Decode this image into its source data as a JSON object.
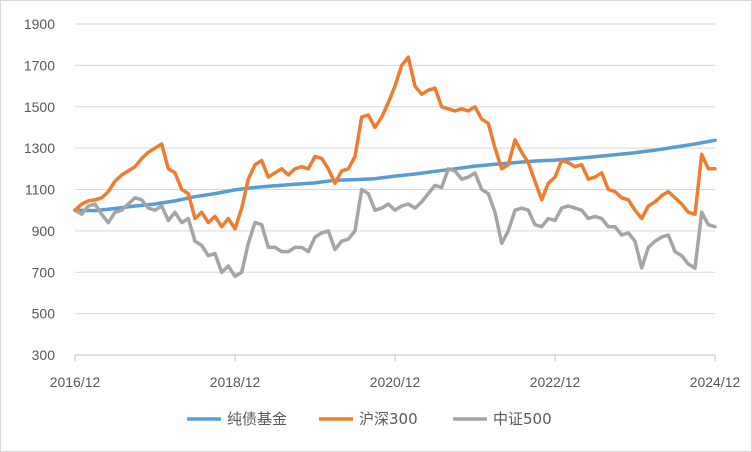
{
  "chart_data": {
    "type": "line",
    "title": "",
    "xlabel": "",
    "ylabel": "",
    "x_range": [
      "2016-12",
      "2024-12"
    ],
    "x_ticks": [
      "2016/12",
      "2018/12",
      "2020/12",
      "2022/12",
      "2024/12"
    ],
    "ylim": [
      300,
      1900
    ],
    "y_ticks": [
      300,
      500,
      700,
      900,
      1100,
      1300,
      1500,
      1700,
      1900
    ],
    "grid": "horizontal",
    "legend_position": "bottom",
    "series": [
      {
        "name": "纯债基金",
        "color": "#5B9BD5",
        "points": [
          [
            "2016-12",
            1000
          ],
          [
            "2017-03",
            998
          ],
          [
            "2017-06",
            1008
          ],
          [
            "2017-09",
            1020
          ],
          [
            "2017-12",
            1030
          ],
          [
            "2018-03",
            1045
          ],
          [
            "2018-06",
            1065
          ],
          [
            "2018-09",
            1080
          ],
          [
            "2018-12",
            1098
          ],
          [
            "2019-03",
            1110
          ],
          [
            "2019-06",
            1118
          ],
          [
            "2019-09",
            1125
          ],
          [
            "2019-12",
            1132
          ],
          [
            "2020-03",
            1145
          ],
          [
            "2020-06",
            1148
          ],
          [
            "2020-09",
            1152
          ],
          [
            "2020-12",
            1165
          ],
          [
            "2021-03",
            1175
          ],
          [
            "2021-06",
            1188
          ],
          [
            "2021-09",
            1200
          ],
          [
            "2021-12",
            1213
          ],
          [
            "2022-03",
            1222
          ],
          [
            "2022-06",
            1230
          ],
          [
            "2022-09",
            1238
          ],
          [
            "2022-12",
            1242
          ],
          [
            "2023-03",
            1250
          ],
          [
            "2023-06",
            1258
          ],
          [
            "2023-09",
            1268
          ],
          [
            "2023-12",
            1278
          ],
          [
            "2024-03",
            1290
          ],
          [
            "2024-06",
            1305
          ],
          [
            "2024-09",
            1320
          ],
          [
            "2024-12",
            1338
          ]
        ]
      },
      {
        "name": "沪深300",
        "color": "#ED7D31",
        "points": [
          [
            "2016-12",
            1000
          ],
          [
            "2017-01",
            1030
          ],
          [
            "2017-02",
            1045
          ],
          [
            "2017-03",
            1050
          ],
          [
            "2017-04",
            1060
          ],
          [
            "2017-05",
            1090
          ],
          [
            "2017-06",
            1140
          ],
          [
            "2017-07",
            1170
          ],
          [
            "2017-08",
            1190
          ],
          [
            "2017-09",
            1210
          ],
          [
            "2017-10",
            1250
          ],
          [
            "2017-11",
            1280
          ],
          [
            "2017-12",
            1300
          ],
          [
            "2018-01",
            1320
          ],
          [
            "2018-02",
            1200
          ],
          [
            "2018-03",
            1180
          ],
          [
            "2018-04",
            1100
          ],
          [
            "2018-05",
            1080
          ],
          [
            "2018-06",
            960
          ],
          [
            "2018-07",
            990
          ],
          [
            "2018-08",
            940
          ],
          [
            "2018-09",
            970
          ],
          [
            "2018-10",
            920
          ],
          [
            "2018-11",
            960
          ],
          [
            "2018-12",
            910
          ],
          [
            "2019-01",
            1010
          ],
          [
            "2019-02",
            1150
          ],
          [
            "2019-03",
            1220
          ],
          [
            "2019-04",
            1240
          ],
          [
            "2019-05",
            1160
          ],
          [
            "2019-06",
            1180
          ],
          [
            "2019-07",
            1200
          ],
          [
            "2019-08",
            1170
          ],
          [
            "2019-09",
            1200
          ],
          [
            "2019-10",
            1210
          ],
          [
            "2019-11",
            1200
          ],
          [
            "2019-12",
            1260
          ],
          [
            "2020-01",
            1250
          ],
          [
            "2020-02",
            1200
          ],
          [
            "2020-03",
            1130
          ],
          [
            "2020-04",
            1190
          ],
          [
            "2020-05",
            1200
          ],
          [
            "2020-06",
            1260
          ],
          [
            "2020-07",
            1450
          ],
          [
            "2020-08",
            1460
          ],
          [
            "2020-09",
            1400
          ],
          [
            "2020-10",
            1450
          ],
          [
            "2020-11",
            1520
          ],
          [
            "2020-12",
            1600
          ],
          [
            "2021-01",
            1700
          ],
          [
            "2021-02",
            1740
          ],
          [
            "2021-03",
            1600
          ],
          [
            "2021-04",
            1560
          ],
          [
            "2021-05",
            1580
          ],
          [
            "2021-06",
            1590
          ],
          [
            "2021-07",
            1500
          ],
          [
            "2021-08",
            1490
          ],
          [
            "2021-09",
            1480
          ],
          [
            "2021-10",
            1490
          ],
          [
            "2021-11",
            1480
          ],
          [
            "2021-12",
            1500
          ],
          [
            "2022-01",
            1440
          ],
          [
            "2022-02",
            1420
          ],
          [
            "2022-03",
            1300
          ],
          [
            "2022-04",
            1200
          ],
          [
            "2022-05",
            1220
          ],
          [
            "2022-06",
            1340
          ],
          [
            "2022-07",
            1280
          ],
          [
            "2022-08",
            1230
          ],
          [
            "2022-09",
            1140
          ],
          [
            "2022-10",
            1050
          ],
          [
            "2022-11",
            1130
          ],
          [
            "2022-12",
            1160
          ],
          [
            "2023-01",
            1240
          ],
          [
            "2023-02",
            1230
          ],
          [
            "2023-03",
            1210
          ],
          [
            "2023-04",
            1220
          ],
          [
            "2023-05",
            1150
          ],
          [
            "2023-06",
            1160
          ],
          [
            "2023-07",
            1180
          ],
          [
            "2023-08",
            1100
          ],
          [
            "2023-09",
            1090
          ],
          [
            "2023-10",
            1060
          ],
          [
            "2023-11",
            1050
          ],
          [
            "2023-12",
            1000
          ],
          [
            "2024-01",
            960
          ],
          [
            "2024-02",
            1020
          ],
          [
            "2024-03",
            1040
          ],
          [
            "2024-04",
            1070
          ],
          [
            "2024-05",
            1090
          ],
          [
            "2024-06",
            1060
          ],
          [
            "2024-07",
            1030
          ],
          [
            "2024-08",
            990
          ],
          [
            "2024-09",
            980
          ],
          [
            "2024-10",
            1270
          ],
          [
            "2024-11",
            1200
          ],
          [
            "2024-12",
            1200
          ]
        ]
      },
      {
        "name": "中证500",
        "color": "#A5A5A5",
        "points": [
          [
            "2016-12",
            1000
          ],
          [
            "2017-01",
            980
          ],
          [
            "2017-02",
            1020
          ],
          [
            "2017-03",
            1030
          ],
          [
            "2017-04",
            980
          ],
          [
            "2017-05",
            940
          ],
          [
            "2017-06",
            990
          ],
          [
            "2017-07",
            1000
          ],
          [
            "2017-08",
            1030
          ],
          [
            "2017-09",
            1060
          ],
          [
            "2017-10",
            1050
          ],
          [
            "2017-11",
            1010
          ],
          [
            "2017-12",
            1000
          ],
          [
            "2018-01",
            1020
          ],
          [
            "2018-02",
            950
          ],
          [
            "2018-03",
            990
          ],
          [
            "2018-04",
            940
          ],
          [
            "2018-05",
            960
          ],
          [
            "2018-06",
            850
          ],
          [
            "2018-07",
            830
          ],
          [
            "2018-08",
            780
          ],
          [
            "2018-09",
            790
          ],
          [
            "2018-10",
            700
          ],
          [
            "2018-11",
            730
          ],
          [
            "2018-12",
            680
          ],
          [
            "2019-01",
            700
          ],
          [
            "2019-02",
            840
          ],
          [
            "2019-03",
            940
          ],
          [
            "2019-04",
            930
          ],
          [
            "2019-05",
            820
          ],
          [
            "2019-06",
            820
          ],
          [
            "2019-07",
            800
          ],
          [
            "2019-08",
            800
          ],
          [
            "2019-09",
            820
          ],
          [
            "2019-10",
            820
          ],
          [
            "2019-11",
            800
          ],
          [
            "2019-12",
            870
          ],
          [
            "2020-01",
            890
          ],
          [
            "2020-02",
            900
          ],
          [
            "2020-03",
            810
          ],
          [
            "2020-04",
            850
          ],
          [
            "2020-05",
            860
          ],
          [
            "2020-06",
            900
          ],
          [
            "2020-07",
            1100
          ],
          [
            "2020-08",
            1080
          ],
          [
            "2020-09",
            1000
          ],
          [
            "2020-10",
            1010
          ],
          [
            "2020-11",
            1030
          ],
          [
            "2020-12",
            1000
          ],
          [
            "2021-01",
            1020
          ],
          [
            "2021-02",
            1030
          ],
          [
            "2021-03",
            1010
          ],
          [
            "2021-04",
            1040
          ],
          [
            "2021-05",
            1080
          ],
          [
            "2021-06",
            1120
          ],
          [
            "2021-07",
            1110
          ],
          [
            "2021-08",
            1200
          ],
          [
            "2021-09",
            1190
          ],
          [
            "2021-10",
            1150
          ],
          [
            "2021-11",
            1160
          ],
          [
            "2021-12",
            1180
          ],
          [
            "2022-01",
            1100
          ],
          [
            "2022-02",
            1080
          ],
          [
            "2022-03",
            990
          ],
          [
            "2022-04",
            840
          ],
          [
            "2022-05",
            900
          ],
          [
            "2022-06",
            1000
          ],
          [
            "2022-07",
            1010
          ],
          [
            "2022-08",
            1000
          ],
          [
            "2022-09",
            930
          ],
          [
            "2022-10",
            920
          ],
          [
            "2022-11",
            960
          ],
          [
            "2022-12",
            950
          ],
          [
            "2023-01",
            1010
          ],
          [
            "2023-02",
            1020
          ],
          [
            "2023-03",
            1010
          ],
          [
            "2023-04",
            1000
          ],
          [
            "2023-05",
            960
          ],
          [
            "2023-06",
            970
          ],
          [
            "2023-07",
            960
          ],
          [
            "2023-08",
            920
          ],
          [
            "2023-09",
            920
          ],
          [
            "2023-10",
            880
          ],
          [
            "2023-11",
            890
          ],
          [
            "2023-12",
            850
          ],
          [
            "2024-01",
            720
          ],
          [
            "2024-02",
            820
          ],
          [
            "2024-03",
            850
          ],
          [
            "2024-04",
            870
          ],
          [
            "2024-05",
            880
          ],
          [
            "2024-06",
            800
          ],
          [
            "2024-07",
            780
          ],
          [
            "2024-08",
            740
          ],
          [
            "2024-09",
            720
          ],
          [
            "2024-10",
            990
          ],
          [
            "2024-11",
            930
          ],
          [
            "2024-12",
            920
          ]
        ]
      }
    ]
  }
}
